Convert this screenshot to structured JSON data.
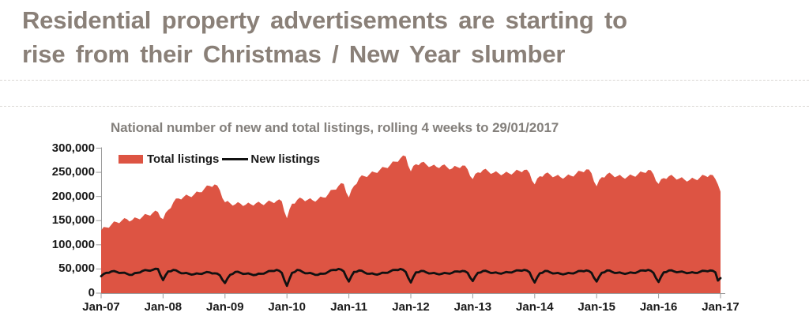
{
  "header": {
    "title_line1": "Residential property advertisements are starting to",
    "title_line2": "rise from their Christmas / New Year slumber",
    "title_color": "#8a8078"
  },
  "chart": {
    "title": "National number of new and total listings, rolling 4 weeks to 29/01/2017",
    "legend": [
      {
        "label": "Total listings",
        "type": "area",
        "color": "#DD5443"
      },
      {
        "label": "New listings",
        "type": "line",
        "color": "#111111"
      }
    ]
  },
  "chart_data": {
    "type": "area",
    "title": "National number of new and total listings, rolling 4 weeks to 29/01/2017",
    "xlabel": "",
    "ylabel": "",
    "ylim": [
      0,
      300000
    ],
    "grid": false,
    "legend_position": "top-left-inside",
    "x_unit": "months since Jan-2007 (0 = Jan-07, 120 = Jan-17)",
    "x_tick_labels": [
      "Jan-07",
      "Jan-08",
      "Jan-09",
      "Jan-10",
      "Jan-11",
      "Jan-12",
      "Jan-13",
      "Jan-14",
      "Jan-15",
      "Jan-16",
      "Jan-17"
    ],
    "y_ticks": [
      0,
      50000,
      100000,
      150000,
      200000,
      250000,
      300000
    ],
    "y_tick_labels": [
      "0",
      "50,000",
      "100,000",
      "150,000",
      "200,000",
      "250,000",
      "300,000"
    ],
    "x": [
      0,
      1,
      2,
      3,
      4,
      5,
      6,
      7,
      8,
      9,
      10,
      11,
      12,
      13,
      14,
      15,
      16,
      17,
      18,
      19,
      20,
      21,
      22,
      23,
      24,
      25,
      26,
      27,
      28,
      29,
      30,
      31,
      32,
      33,
      34,
      35,
      36,
      37,
      38,
      39,
      40,
      41,
      42,
      43,
      44,
      45,
      46,
      47,
      48,
      49,
      50,
      51,
      52,
      53,
      54,
      55,
      56,
      57,
      58,
      59,
      60,
      61,
      62,
      63,
      64,
      65,
      66,
      67,
      68,
      69,
      70,
      71,
      72,
      73,
      74,
      75,
      76,
      77,
      78,
      79,
      80,
      81,
      82,
      83,
      84,
      85,
      86,
      87,
      88,
      89,
      90,
      91,
      92,
      93,
      94,
      95,
      96,
      97,
      98,
      99,
      100,
      101,
      102,
      103,
      104,
      105,
      106,
      107,
      108,
      109,
      110,
      111,
      112,
      113,
      114,
      115,
      116,
      117,
      118,
      119,
      119.5,
      120
    ],
    "series": [
      {
        "name": "Total listings",
        "type": "area",
        "color": "#DD5443",
        "values": [
          130000,
          136000,
          142000,
          147000,
          150000,
          153000,
          151000,
          155000,
          158000,
          162000,
          166000,
          168000,
          153000,
          172000,
          188000,
          196000,
          199000,
          201000,
          204000,
          209000,
          216000,
          222000,
          225000,
          213000,
          188000,
          186000,
          184000,
          185000,
          183000,
          184000,
          186000,
          185000,
          187000,
          189000,
          191000,
          190000,
          155000,
          185000,
          193000,
          195000,
          193000,
          192000,
          194000,
          198000,
          205000,
          214000,
          222000,
          226000,
          198000,
          222000,
          238000,
          242000,
          246000,
          250000,
          255000,
          260000,
          265000,
          272000,
          279000,
          283000,
          252000,
          267000,
          270000,
          266000,
          263000,
          261000,
          264000,
          261000,
          258000,
          261000,
          264000,
          256000,
          236000,
          250000,
          255000,
          252000,
          249000,
          248000,
          247000,
          248000,
          250000,
          253000,
          255000,
          248000,
          225000,
          242000,
          247000,
          245000,
          242000,
          240000,
          241000,
          243000,
          247000,
          252000,
          256000,
          248000,
          221000,
          240000,
          246000,
          245000,
          242000,
          240000,
          241000,
          243000,
          246000,
          250000,
          255000,
          246000,
          226000,
          238000,
          242000,
          240000,
          237000,
          235000,
          234000,
          236000,
          239000,
          243000,
          245000,
          236000,
          225000,
          210000
        ]
      },
      {
        "name": "New listings",
        "type": "line",
        "color": "#111111",
        "values": [
          35000,
          42000,
          45000,
          44000,
          42000,
          40000,
          38000,
          42000,
          46000,
          47000,
          48000,
          50000,
          27000,
          45000,
          48000,
          44000,
          41000,
          40000,
          39000,
          40000,
          42000,
          43000,
          41000,
          37000,
          21000,
          38000,
          44000,
          42000,
          40000,
          39000,
          38000,
          40000,
          43000,
          46000,
          48000,
          42000,
          15000,
          42000,
          48000,
          44000,
          41000,
          40000,
          38000,
          40000,
          44000,
          48000,
          50000,
          45000,
          24000,
          44000,
          47000,
          43000,
          40000,
          39000,
          40000,
          42000,
          45000,
          48000,
          50000,
          44000,
          22000,
          43000,
          46000,
          43000,
          41000,
          40000,
          40000,
          41000,
          42000,
          45000,
          46000,
          42000,
          25000,
          42000,
          46000,
          44000,
          42000,
          41000,
          42000,
          43000,
          45000,
          47000,
          48000,
          43000,
          22000,
          41000,
          46000,
          43000,
          41000,
          40000,
          40000,
          41000,
          43000,
          46000,
          47000,
          42000,
          24000,
          42000,
          47000,
          44000,
          42000,
          41000,
          41000,
          42000,
          44000,
          47000,
          48000,
          42000,
          23000,
          43000,
          47000,
          45000,
          44000,
          43000,
          42000,
          42000,
          44000,
          46000,
          47000,
          43000,
          26000,
          31000
        ]
      }
    ]
  }
}
